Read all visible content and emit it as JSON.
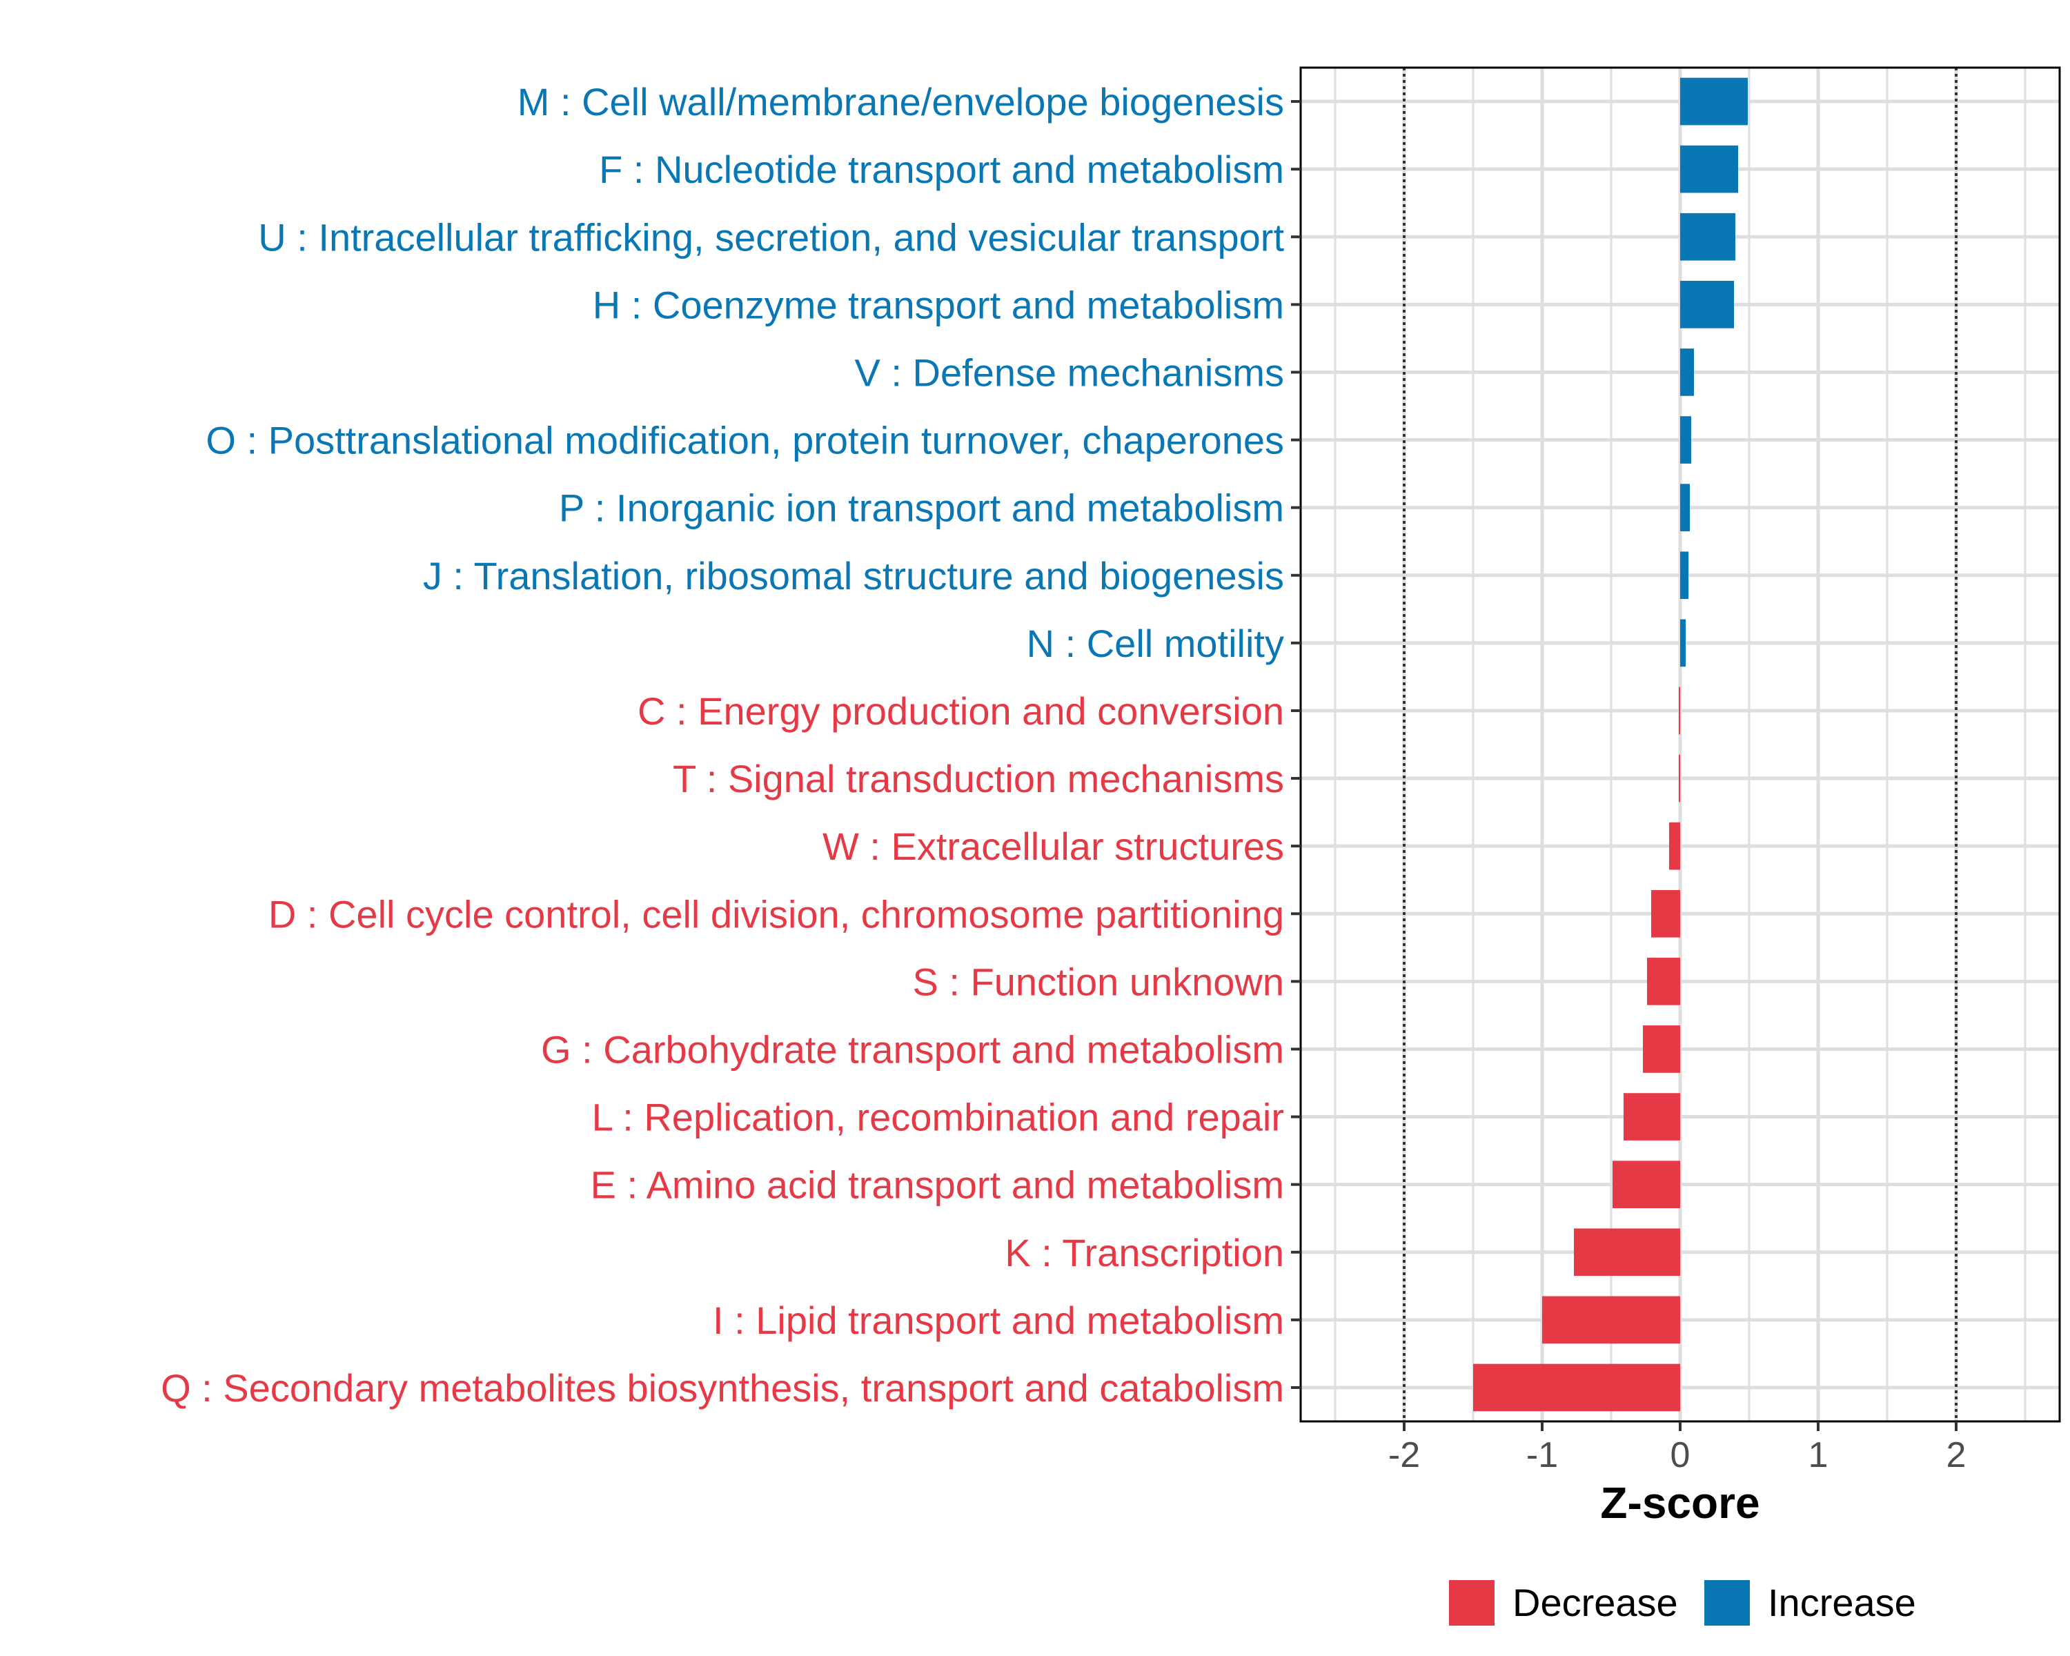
{
  "chart_data": {
    "type": "bar",
    "orientation": "horizontal",
    "title": "",
    "xlabel": "Z-score",
    "ylabel": "",
    "xlim": [
      -2.75,
      2.75
    ],
    "xticks": [
      -2,
      -1,
      0,
      1,
      2
    ],
    "xtick_labels": [
      "-2",
      "-1",
      "0",
      "1",
      "2"
    ],
    "threshold_lines": [
      -2,
      2
    ],
    "grid": true,
    "colors": {
      "Decrease": "#e63946",
      "Increase": "#0a77b5"
    },
    "categories": [
      "M : Cell wall/membrane/envelope biogenesis",
      "F : Nucleotide transport and metabolism",
      "U : Intracellular trafficking, secretion, and vesicular transport",
      "H : Coenzyme transport and metabolism",
      "V : Defense mechanisms",
      "O : Posttranslational modification, protein turnover, chaperones",
      "P : Inorganic ion transport and metabolism",
      "J : Translation, ribosomal structure and biogenesis",
      "N : Cell motility",
      "C : Energy production and conversion",
      "T : Signal transduction mechanisms",
      "W : Extracellular structures",
      "D : Cell cycle control, cell division, chromosome partitioning",
      "S : Function unknown",
      "G : Carbohydrate transport and metabolism",
      "L : Replication, recombination and repair",
      "E : Amino acid transport and metabolism",
      "K : Transcription",
      "I : Lipid transport and metabolism",
      "Q : Secondary metabolites biosynthesis, transport and catabolism"
    ],
    "values": [
      0.49,
      0.42,
      0.4,
      0.39,
      0.1,
      0.08,
      0.07,
      0.06,
      0.04,
      -0.01,
      -0.01,
      -0.08,
      -0.21,
      -0.24,
      -0.27,
      -0.41,
      -0.49,
      -0.77,
      -1.0,
      -1.5
    ],
    "groups": [
      "Increase",
      "Increase",
      "Increase",
      "Increase",
      "Increase",
      "Increase",
      "Increase",
      "Increase",
      "Increase",
      "Decrease",
      "Decrease",
      "Decrease",
      "Decrease",
      "Decrease",
      "Decrease",
      "Decrease",
      "Decrease",
      "Decrease",
      "Decrease",
      "Decrease"
    ],
    "legend": {
      "position": "bottom",
      "entries": [
        "Decrease",
        "Increase"
      ]
    }
  }
}
